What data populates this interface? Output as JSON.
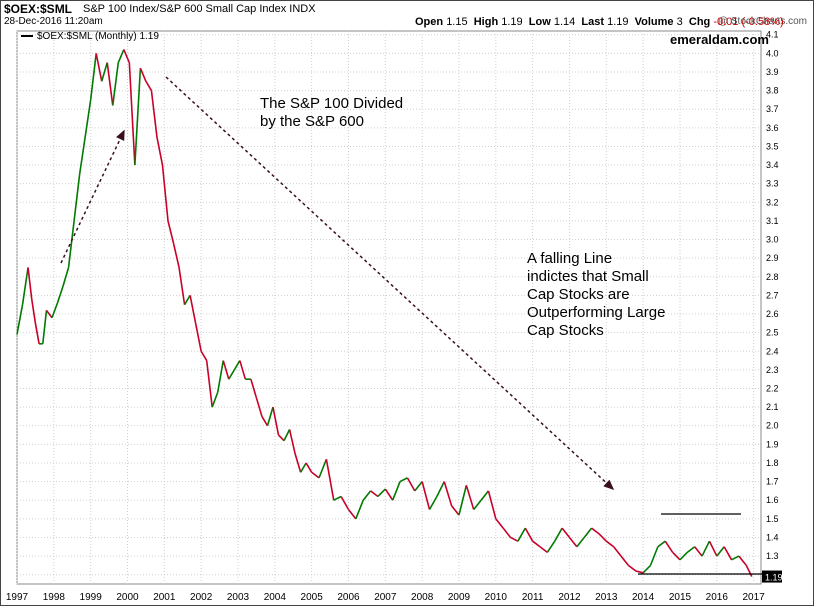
{
  "header": {
    "symbol": "$OEX:$SML",
    "name": "S&P 100 Index/S&P 600 Small Cap Index  INDX",
    "date": "28-Dec-2016 11:20am",
    "brand": "@ StockCharts.com",
    "open_label": "Open",
    "open": "1.15",
    "high_label": "High",
    "high": "1.19",
    "low_label": "Low",
    "low": "1.14",
    "last_label": "Last",
    "last": "1.19",
    "volume_label": "Volume",
    "volume": "3",
    "chg_label": "Chg",
    "chg": "-0.01 (-0.58%)"
  },
  "legend": "$OEX:$SML (Monthly) 1.19",
  "site": "emeraldam.com",
  "annotations": {
    "title": "The S&P 100 Divided\nby the S&P 600",
    "note": "A falling Line\nindictes that Small\nCap Stocks are\nOutperforming Large\nCap Stocks"
  },
  "last_value_label": "1.19",
  "colors": {
    "up": "#007a00",
    "down": "#c8002a",
    "grid": "#d0d0d0",
    "arrow": "#3a1020"
  },
  "chart_data": {
    "type": "line",
    "ylim": [
      1.15,
      4.12
    ],
    "xlim": [
      1997.0,
      2017.2
    ],
    "y_ticks": [
      "1.2",
      "1.3",
      "1.4",
      "1.5",
      "1.6",
      "1.7",
      "1.8",
      "1.9",
      "2.0",
      "2.1",
      "2.2",
      "2.3",
      "2.4",
      "2.5",
      "2.6",
      "2.7",
      "2.8",
      "2.9",
      "3.0",
      "3.1",
      "3.2",
      "3.3",
      "3.4",
      "3.5",
      "3.6",
      "3.7",
      "3.8",
      "3.9",
      "4.0",
      "4.1"
    ],
    "x_ticks": [
      "1997",
      "1998",
      "1999",
      "2000",
      "2001",
      "2002",
      "2003",
      "2004",
      "2005",
      "2006",
      "2007",
      "2008",
      "2009",
      "2010",
      "2011",
      "2012",
      "2013",
      "2014",
      "2015",
      "2016",
      "2017"
    ],
    "series": [
      {
        "x": [
          1997.0,
          1997.15,
          1997.3,
          1997.4,
          1997.5,
          1997.6,
          1997.7,
          1997.8,
          1997.95,
          1998.1,
          1998.25,
          1998.4,
          1998.55,
          1998.7,
          1998.85,
          1999.0,
          1999.15,
          1999.3,
          1999.45,
          1999.6,
          1999.75,
          1999.9,
          2000.05,
          2000.2,
          2000.35,
          2000.5,
          2000.65,
          2000.8,
          2000.95,
          2001.1,
          2001.25,
          2001.4,
          2001.55,
          2001.7,
          2001.85,
          2002.0,
          2002.15,
          2002.3,
          2002.45,
          2002.6,
          2002.75,
          2002.9,
          2003.05,
          2003.2,
          2003.35,
          2003.5,
          2003.65,
          2003.8,
          2003.95,
          2004.1,
          2004.25,
          2004.4,
          2004.55,
          2004.7,
          2004.85,
          2005.0,
          2005.2,
          2005.4,
          2005.6,
          2005.8,
          2006.0,
          2006.2,
          2006.4,
          2006.6,
          2006.8,
          2007.0,
          2007.2,
          2007.4,
          2007.6,
          2007.8,
          2008.0,
          2008.2,
          2008.4,
          2008.6,
          2008.8,
          2009.0,
          2009.2,
          2009.4,
          2009.6,
          2009.8,
          2010.0,
          2010.2,
          2010.4,
          2010.6,
          2010.8,
          2011.0,
          2011.2,
          2011.4,
          2011.6,
          2011.8,
          2012.0,
          2012.2,
          2012.4,
          2012.6,
          2012.8,
          2013.0,
          2013.2,
          2013.4,
          2013.6,
          2013.8,
          2014.0,
          2014.2,
          2014.4,
          2014.6,
          2014.8,
          2015.0,
          2015.2,
          2015.4,
          2015.6,
          2015.8,
          2016.0,
          2016.2,
          2016.4,
          2016.6,
          2016.8,
          2016.95
        ],
        "values": [
          2.49,
          2.65,
          2.85,
          2.68,
          2.55,
          2.44,
          2.44,
          2.62,
          2.58,
          2.66,
          2.75,
          2.85,
          3.1,
          3.35,
          3.55,
          3.75,
          4.0,
          3.85,
          3.95,
          3.72,
          3.95,
          4.02,
          3.95,
          3.4,
          3.92,
          3.85,
          3.8,
          3.55,
          3.4,
          3.1,
          2.98,
          2.85,
          2.65,
          2.7,
          2.55,
          2.4,
          2.35,
          2.1,
          2.18,
          2.35,
          2.25,
          2.3,
          2.35,
          2.25,
          2.25,
          2.15,
          2.05,
          2.0,
          2.1,
          1.95,
          1.92,
          1.98,
          1.85,
          1.75,
          1.8,
          1.75,
          1.72,
          1.82,
          1.6,
          1.62,
          1.55,
          1.5,
          1.6,
          1.65,
          1.62,
          1.66,
          1.6,
          1.7,
          1.72,
          1.65,
          1.7,
          1.55,
          1.62,
          1.7,
          1.57,
          1.52,
          1.68,
          1.55,
          1.6,
          1.65,
          1.5,
          1.45,
          1.4,
          1.38,
          1.45,
          1.38,
          1.35,
          1.32,
          1.38,
          1.45,
          1.4,
          1.35,
          1.4,
          1.45,
          1.42,
          1.38,
          1.35,
          1.3,
          1.25,
          1.22,
          1.21,
          1.25,
          1.35,
          1.38,
          1.32,
          1.28,
          1.32,
          1.35,
          1.3,
          1.38,
          1.3,
          1.35,
          1.28,
          1.3,
          1.25,
          1.19
        ]
      }
    ]
  }
}
